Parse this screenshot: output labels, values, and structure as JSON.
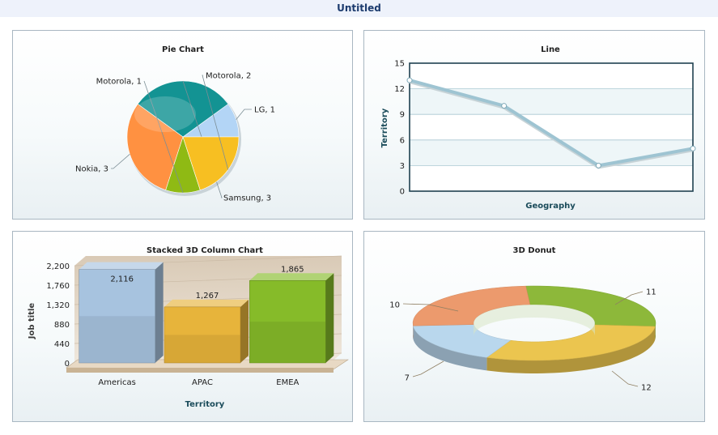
{
  "window": {
    "title": "Untitled"
  },
  "charts": [
    {
      "type": "pie",
      "title": "Pie Chart",
      "slices": [
        {
          "name": "LG",
          "value": 1,
          "label": "LG, 1",
          "color": "#b3d5f6"
        },
        {
          "name": "Samsung",
          "value": 3,
          "label": "Samsung, 3",
          "color": "#139393"
        },
        {
          "name": "Nokia",
          "value": 3,
          "label": "Nokia, 3",
          "color": "#ff9141"
        },
        {
          "name": "Motorola",
          "value": 1,
          "label": "Motorola, 1",
          "color": "#8fba14"
        },
        {
          "name": "Motorola",
          "value": 2,
          "label": "Motorola, 2",
          "color": "#f7bf22"
        }
      ]
    },
    {
      "type": "line",
      "title": "Line",
      "xlabel": "Geography",
      "ylabel": "Territory",
      "ylim": [
        0,
        15
      ],
      "yticks": [
        "0",
        "3",
        "6",
        "9",
        "12",
        "15"
      ],
      "values": [
        13,
        10,
        3,
        5
      ],
      "color": "#9ec4d2"
    },
    {
      "type": "bar",
      "title": "Stacked 3D Column Chart",
      "xlabel": "Territory",
      "ylabel": "Job title",
      "ylim": [
        0,
        2200
      ],
      "yticks": [
        "0",
        "440",
        "880",
        "1,320",
        "1,760",
        "2,200"
      ],
      "categories": [
        "Americas",
        "APAC",
        "EMEA"
      ],
      "values": [
        2116,
        1267,
        1865
      ],
      "data_labels": [
        "2,116",
        "1,267",
        "1,865"
      ],
      "colors": [
        "#a7c3df",
        "#e7b43b",
        "#86bb29"
      ]
    },
    {
      "type": "pie",
      "title": "3D Donut",
      "slices": [
        {
          "value": 11,
          "label": "11",
          "color": "#8db83a"
        },
        {
          "value": 12,
          "label": "12",
          "color": "#ebc54f"
        },
        {
          "value": 7,
          "label": "7",
          "color": "#b9d7ed"
        },
        {
          "value": 10,
          "label": "10",
          "color": "#ec9a6d"
        }
      ]
    }
  ]
}
